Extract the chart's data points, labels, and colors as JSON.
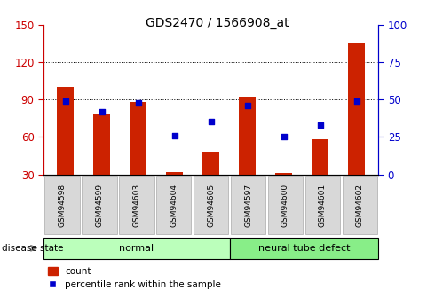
{
  "title": "GDS2470 / 1566908_at",
  "samples": [
    "GSM94598",
    "GSM94599",
    "GSM94603",
    "GSM94604",
    "GSM94605",
    "GSM94597",
    "GSM94600",
    "GSM94601",
    "GSM94602"
  ],
  "red_values": [
    100,
    78,
    88,
    32,
    48,
    92,
    31,
    58,
    135
  ],
  "blue_values": [
    49,
    42,
    48,
    26,
    35,
    46,
    25,
    33,
    49
  ],
  "groups": [
    {
      "label": "normal",
      "start": 0,
      "end": 5,
      "color": "#bbffbb"
    },
    {
      "label": "neural tube defect",
      "start": 5,
      "end": 9,
      "color": "#88ee88"
    }
  ],
  "left_ylim": [
    30,
    150
  ],
  "right_ylim": [
    0,
    100
  ],
  "left_yticks": [
    30,
    60,
    90,
    120,
    150
  ],
  "right_yticks": [
    0,
    25,
    50,
    75,
    100
  ],
  "left_color": "#cc0000",
  "right_color": "#0000cc",
  "bar_color": "#cc2200",
  "dot_color": "#0000cc",
  "grid_color": "#000000",
  "bar_bottom": 30,
  "legend_count": "count",
  "legend_pct": "percentile rank within the sample",
  "disease_state_label": "disease state",
  "bar_width": 0.45
}
